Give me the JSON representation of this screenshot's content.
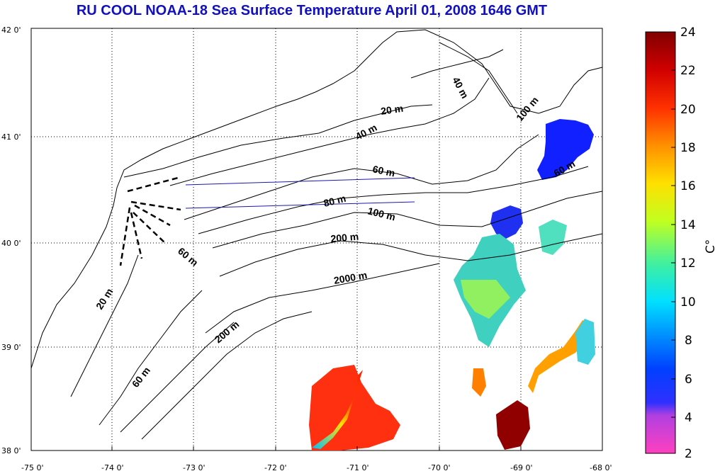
{
  "title": "RU COOL  NOAA-18 Sea Surface Temperature April 01, 2008 1646 GMT",
  "x_ticks": [
    "-75 0'",
    "-74 0'",
    "-73 0'",
    "-72 0'",
    "-71 0'",
    "-70 0'",
    "-69 0'",
    "-68 0'"
  ],
  "y_ticks": [
    "42 0'",
    "41 0'",
    "40 0'",
    "39 0'",
    "38 0'"
  ],
  "contour_labels": [
    "40 m",
    "100 m",
    "20 m",
    "40 m",
    "60 m",
    "60 m",
    "80 m",
    "100 m",
    "200 m",
    "60 m",
    "20 m",
    "2000 m",
    "200 m",
    "60 m"
  ],
  "colorbar": {
    "ticks": [
      "24",
      "22",
      "20",
      "18",
      "16",
      "14",
      "12",
      "10",
      "8",
      "6",
      "4",
      "2"
    ],
    "unit": "C°",
    "range": [
      2,
      24
    ],
    "colors": [
      "#ff40c0",
      "#b040e0",
      "#3030ff",
      "#0060ff",
      "#00c0ff",
      "#20e0c0",
      "#80ff60",
      "#e0ff20",
      "#ffd000",
      "#ff8000",
      "#ff2000",
      "#c00000",
      "#800000"
    ]
  }
}
